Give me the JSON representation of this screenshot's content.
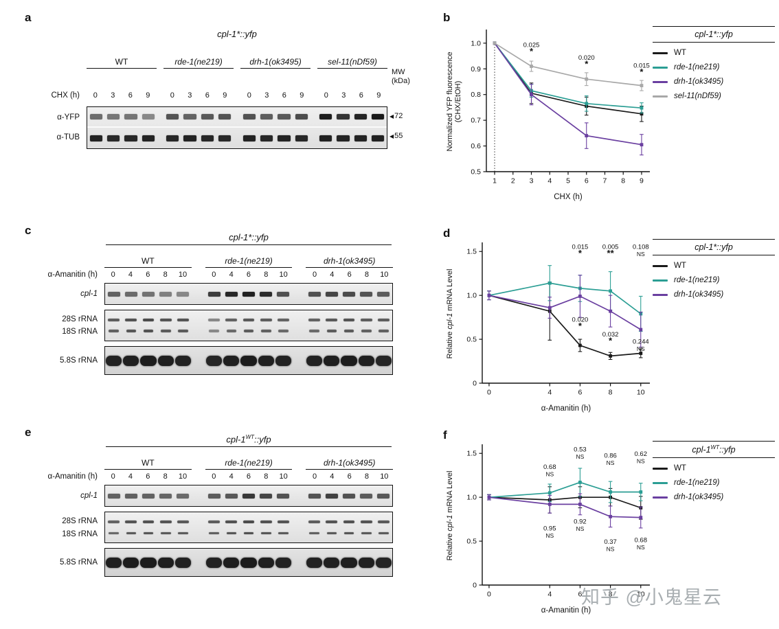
{
  "watermark": "知乎 @小鬼星云",
  "panels": {
    "a": {
      "label": "a",
      "title": {
        "pre": "cpl-1*",
        "sup": "",
        "post": "::yfp"
      },
      "title_rule": false,
      "mw_header": [
        "MW",
        "(kDa)"
      ],
      "lane_axis_label": "CHX (h)",
      "lane_values": [
        "0",
        "3",
        "6",
        "9"
      ],
      "groups": [
        {
          "name": "WT",
          "italic": false
        },
        {
          "name": "rde-1(ne219)",
          "italic": true
        },
        {
          "name": "drh-1(ok3495)",
          "italic": true
        },
        {
          "name": "sel-11(nDf59)",
          "italic": true
        }
      ],
      "boxes": [
        {
          "rows": [
            {
              "labels": [
                {
                  "t": "α-YFP",
                  "i": false
                }
              ],
              "marker": "72",
              "type": "single",
              "height": 28,
              "band_h": 8,
              "intensities": [
                [
                  0.45,
                  0.38,
                  0.4,
                  0.28
                ],
                [
                  0.6,
                  0.5,
                  0.58,
                  0.6
                ],
                [
                  0.62,
                  0.55,
                  0.58,
                  0.65
                ],
                [
                  0.95,
                  0.8,
                  0.9,
                  0.97
                ]
              ]
            },
            {
              "labels": [
                {
                  "t": "α-TUB",
                  "i": false
                }
              ],
              "marker": "55",
              "type": "single",
              "height": 30,
              "band_h": 9,
              "intensities": [
                [
                  0.9,
                  0.86,
                  0.88,
                  0.9
                ],
                [
                  0.88,
                  0.9,
                  0.88,
                  0.86
                ],
                [
                  0.9,
                  0.88,
                  0.9,
                  0.88
                ],
                [
                  0.92,
                  0.9,
                  0.9,
                  0.92
                ]
              ]
            }
          ]
        }
      ]
    },
    "c": {
      "label": "c",
      "title": {
        "pre": "cpl-1*",
        "sup": "",
        "post": "::yfp"
      },
      "title_rule": true,
      "mw_header": null,
      "lane_axis_label": "α-Amanitin (h)",
      "lane_values": [
        "0",
        "4",
        "6",
        "8",
        "10"
      ],
      "groups": [
        {
          "name": "WT",
          "italic": false
        },
        {
          "name": "rde-1(ne219)",
          "italic": true
        },
        {
          "name": "drh-1(ok3495)",
          "italic": true
        }
      ],
      "boxes": [
        {
          "rows": [
            {
              "labels": [
                {
                  "t": "cpl-1",
                  "i": true
                }
              ],
              "marker": null,
              "type": "single",
              "height": 30,
              "band_h": 7,
              "intensities": [
                [
                  0.5,
                  0.45,
                  0.4,
                  0.32,
                  0.26
                ],
                [
                  0.75,
                  0.88,
                  0.92,
                  0.85,
                  0.62
                ],
                [
                  0.62,
                  0.7,
                  0.66,
                  0.6,
                  0.55
                ]
              ]
            }
          ]
        },
        {
          "rows": [
            {
              "labels": [
                {
                  "t": "28S rRNA",
                  "i": false
                },
                {
                  "t": "18S rRNA",
                  "i": false
                }
              ],
              "marker": null,
              "type": "double",
              "height": 44,
              "intensities": [
                [
                  0.55,
                  0.62,
                  0.65,
                  0.6,
                  0.6
                ],
                [
                  0.28,
                  0.5,
                  0.58,
                  0.55,
                  0.5
                ],
                [
                  0.5,
                  0.58,
                  0.6,
                  0.55,
                  0.55
                ]
              ]
            }
          ]
        },
        {
          "rows": [
            {
              "labels": [
                {
                  "t": "5.8S rRNA",
                  "i": false
                }
              ],
              "marker": null,
              "type": "thick",
              "height": 40,
              "band_h": 15,
              "intensities": [
                [
                  0.9,
                  0.92,
                  0.95,
                  0.93,
                  0.9
                ],
                [
                  0.88,
                  0.92,
                  0.95,
                  0.92,
                  0.9
                ],
                [
                  0.9,
                  0.93,
                  0.95,
                  0.92,
                  0.88
                ]
              ]
            }
          ]
        }
      ]
    },
    "e": {
      "label": "e",
      "title": {
        "pre": "cpl-1",
        "sup": "WT",
        "post": "::yfp"
      },
      "title_rule": true,
      "mw_header": null,
      "lane_axis_label": "α-Amanitin (h)",
      "lane_values": [
        "0",
        "4",
        "6",
        "8",
        "10"
      ],
      "groups": [
        {
          "name": "WT",
          "italic": false
        },
        {
          "name": "rde-1(ne219)",
          "italic": true
        },
        {
          "name": "drh-1(ok3495)",
          "italic": true
        }
      ],
      "boxes": [
        {
          "rows": [
            {
              "labels": [
                {
                  "t": "cpl-1",
                  "i": true
                }
              ],
              "marker": null,
              "type": "single",
              "height": 30,
              "band_h": 7,
              "intensities": [
                [
                  0.5,
                  0.52,
                  0.5,
                  0.48,
                  0.45
                ],
                [
                  0.55,
                  0.58,
                  0.78,
                  0.7,
                  0.6
                ],
                [
                  0.6,
                  0.72,
                  0.62,
                  0.55,
                  0.58
                ]
              ]
            }
          ]
        },
        {
          "rows": [
            {
              "labels": [
                {
                  "t": "28S rRNA",
                  "i": false
                },
                {
                  "t": "18S rRNA",
                  "i": false
                }
              ],
              "marker": null,
              "type": "double",
              "height": 44,
              "intensities": [
                [
                  0.5,
                  0.6,
                  0.62,
                  0.6,
                  0.58
                ],
                [
                  0.55,
                  0.62,
                  0.65,
                  0.62,
                  0.6
                ],
                [
                  0.55,
                  0.6,
                  0.62,
                  0.6,
                  0.58
                ]
              ]
            }
          ]
        },
        {
          "rows": [
            {
              "labels": [
                {
                  "t": "5.8S rRNA",
                  "i": false
                }
              ],
              "marker": null,
              "type": "thick",
              "height": 40,
              "band_h": 15,
              "intensities": [
                [
                  0.92,
                  0.95,
                  0.95,
                  0.93,
                  0.9
                ],
                [
                  0.9,
                  0.93,
                  0.95,
                  0.93,
                  0.9
                ],
                [
                  0.9,
                  0.92,
                  0.94,
                  0.92,
                  0.89
                ]
              ]
            }
          ]
        }
      ]
    }
  },
  "chart_data": [
    {
      "panel_label": "b",
      "type": "line",
      "size": [
        312,
        278
      ],
      "margins": [
        64,
        10,
        26,
        48
      ],
      "x": [
        1,
        3,
        6,
        9
      ],
      "xlim": [
        0.55,
        9.45
      ],
      "ylim": [
        0.5,
        1.045
      ],
      "xticks": [
        1,
        2,
        3,
        4,
        5,
        6,
        7,
        8,
        9
      ],
      "xtick_labels": [
        "1",
        "2",
        "3",
        "4",
        "5",
        "6",
        "7",
        "8",
        "9"
      ],
      "yticks": [
        0.5,
        0.6,
        0.7,
        0.8,
        0.9,
        1.0
      ],
      "ytick_labels": [
        "0.5",
        "0.6",
        "0.7",
        "0.8",
        "0.9",
        "1.0"
      ],
      "xlabel": "CHX (h)",
      "ylabel_lines": [
        [
          {
            "t": "Normalized YFP fluorescence"
          }
        ],
        [
          {
            "t": "(CHX/EtOH)"
          }
        ]
      ],
      "grid": false,
      "legend_position": "right",
      "vline": {
        "x": 1,
        "top": 1.0
      },
      "legend_title": {
        "pre": "cpl-1*",
        "sup": "",
        "post": "::yfp"
      },
      "series": [
        {
          "name": "WT",
          "italic": false,
          "color": "#1a1a1a",
          "values": [
            1.0,
            0.805,
            0.755,
            0.725
          ],
          "errors": [
            0,
            0.04,
            0.035,
            0.03
          ]
        },
        {
          "name": "rde-1(ne219)",
          "italic": true,
          "color": "#2b9e94",
          "values": [
            1.0,
            0.815,
            0.765,
            0.748
          ],
          "errors": [
            0,
            0.025,
            0.03,
            0.02
          ]
        },
        {
          "name": "drh-1(ok3495)",
          "italic": true,
          "color": "#6a3fa0",
          "values": [
            1.0,
            0.8,
            0.64,
            0.605
          ],
          "errors": [
            0,
            0.04,
            0.05,
            0.04
          ]
        },
        {
          "name": "sel-11(nDf59)",
          "italic": true,
          "color": "#a8a8a8",
          "values": [
            1.0,
            0.91,
            0.86,
            0.835
          ],
          "errors": [
            0,
            0.02,
            0.025,
            0.02
          ]
        }
      ],
      "annotations": [
        {
          "x": 3,
          "y": 0.985,
          "lines": [
            "0.025",
            "*"
          ]
        },
        {
          "x": 6,
          "y": 0.935,
          "lines": [
            "0.020",
            "*"
          ]
        },
        {
          "x": 9,
          "y": 0.905,
          "lines": [
            "0.015",
            "*"
          ]
        }
      ]
    },
    {
      "panel_label": "d",
      "type": "line",
      "size": [
        316,
        272
      ],
      "margins": [
        58,
        14,
        22,
        48
      ],
      "x": [
        0,
        4,
        6,
        8,
        10
      ],
      "xlim": [
        -0.45,
        10.6
      ],
      "ylim": [
        0,
        1.58
      ],
      "xticks": [
        0,
        4,
        6,
        8,
        10
      ],
      "xtick_labels": [
        "0",
        "4",
        "6",
        "8",
        "10"
      ],
      "yticks": [
        0,
        0.5,
        1.0,
        1.5
      ],
      "ytick_labels": [
        "0",
        "0.5",
        "1.0",
        "1.5"
      ],
      "xlabel": "α-Amanitin (h)",
      "ylabel_lines": [
        [
          {
            "t": "Relative "
          },
          {
            "t": "cpl-1",
            "i": true
          },
          {
            "t": " mRNA Level"
          }
        ]
      ],
      "grid": false,
      "legend_position": "right",
      "legend_title": {
        "pre": "cpl-1*",
        "sup": "",
        "post": "::yfp"
      },
      "series": [
        {
          "name": "WT",
          "italic": false,
          "color": "#1a1a1a",
          "values": [
            1.0,
            0.82,
            0.43,
            0.31,
            0.34
          ],
          "errors": [
            0.05,
            0.33,
            0.07,
            0.04,
            0.05
          ]
        },
        {
          "name": "rde-1(ne219)",
          "italic": true,
          "color": "#2b9e94",
          "values": [
            1.0,
            1.14,
            1.08,
            1.05,
            0.79
          ],
          "errors": [
            0.05,
            0.2,
            0.15,
            0.22,
            0.2
          ]
        },
        {
          "name": "drh-1(ok3495)",
          "italic": true,
          "color": "#6a3fa0",
          "values": [
            1.0,
            0.86,
            0.99,
            0.82,
            0.61
          ],
          "errors": [
            0.05,
            0.12,
            0.24,
            0.18,
            0.2
          ]
        }
      ],
      "annotations": [
        {
          "x": 6,
          "y": 1.53,
          "lines": [
            "0.015",
            "*"
          ]
        },
        {
          "x": 8,
          "y": 1.53,
          "lines": [
            "0.005",
            "**"
          ]
        },
        {
          "x": 10,
          "y": 1.53,
          "lines": [
            "0.108",
            "NS"
          ]
        },
        {
          "x": 6,
          "y": 0.7,
          "lines": [
            "0.020",
            "*"
          ]
        },
        {
          "x": 8,
          "y": 0.53,
          "lines": [
            "0.032",
            "*"
          ]
        },
        {
          "x": 10,
          "y": 0.45,
          "lines": [
            "0.244",
            "NS"
          ]
        }
      ]
    },
    {
      "panel_label": "f",
      "type": "line",
      "size": [
        316,
        272
      ],
      "margins": [
        58,
        14,
        22,
        48
      ],
      "x": [
        0,
        4,
        6,
        8,
        10
      ],
      "xlim": [
        -0.45,
        10.6
      ],
      "ylim": [
        0,
        1.58
      ],
      "xticks": [
        0,
        4,
        6,
        8,
        10
      ],
      "xtick_labels": [
        "0",
        "4",
        "6",
        "8",
        "10"
      ],
      "yticks": [
        0,
        0.5,
        1.0,
        1.5
      ],
      "ytick_labels": [
        "0",
        "0.5",
        "1.0",
        "1.5"
      ],
      "xlabel": "α-Amanitin (h)",
      "ylabel_lines": [
        [
          {
            "t": "Relative "
          },
          {
            "t": "cpl-1",
            "i": true
          },
          {
            "t": " mRNA Level"
          }
        ]
      ],
      "grid": false,
      "legend_position": "right",
      "legend_title": {
        "pre": "cpl-1",
        "sup": "WT",
        "post": "::yfp"
      },
      "series": [
        {
          "name": "WT",
          "italic": false,
          "color": "#1a1a1a",
          "values": [
            1.0,
            0.97,
            1.0,
            1.0,
            0.88
          ],
          "errors": [
            0.03,
            0.15,
            0.12,
            0.1,
            0.13
          ]
        },
        {
          "name": "rde-1(ne219)",
          "italic": true,
          "color": "#2b9e94",
          "values": [
            1.0,
            1.05,
            1.17,
            1.06,
            1.06
          ],
          "errors": [
            0.03,
            0.1,
            0.16,
            0.12,
            0.1
          ]
        },
        {
          "name": "drh-1(ok3495)",
          "italic": true,
          "color": "#6a3fa0",
          "values": [
            1.0,
            0.92,
            0.92,
            0.78,
            0.77
          ],
          "errors": [
            0.03,
            0.1,
            0.12,
            0.12,
            0.12
          ]
        }
      ],
      "annotations": [
        {
          "x": 4,
          "y": 1.32,
          "lines": [
            "0.68",
            "NS"
          ]
        },
        {
          "x": 6,
          "y": 1.52,
          "lines": [
            "0.53",
            "NS"
          ]
        },
        {
          "x": 8,
          "y": 1.45,
          "lines": [
            "0.86",
            "NS"
          ]
        },
        {
          "x": 10,
          "y": 1.47,
          "lines": [
            "0.62",
            "NS"
          ]
        },
        {
          "x": 4,
          "y": 0.62,
          "lines": [
            "0.95",
            "NS"
          ]
        },
        {
          "x": 6,
          "y": 0.7,
          "lines": [
            "0.92",
            "NS"
          ]
        },
        {
          "x": 8,
          "y": 0.47,
          "lines": [
            "0.37",
            "NS"
          ]
        },
        {
          "x": 10,
          "y": 0.49,
          "lines": [
            "0.68",
            "NS"
          ]
        }
      ]
    }
  ]
}
